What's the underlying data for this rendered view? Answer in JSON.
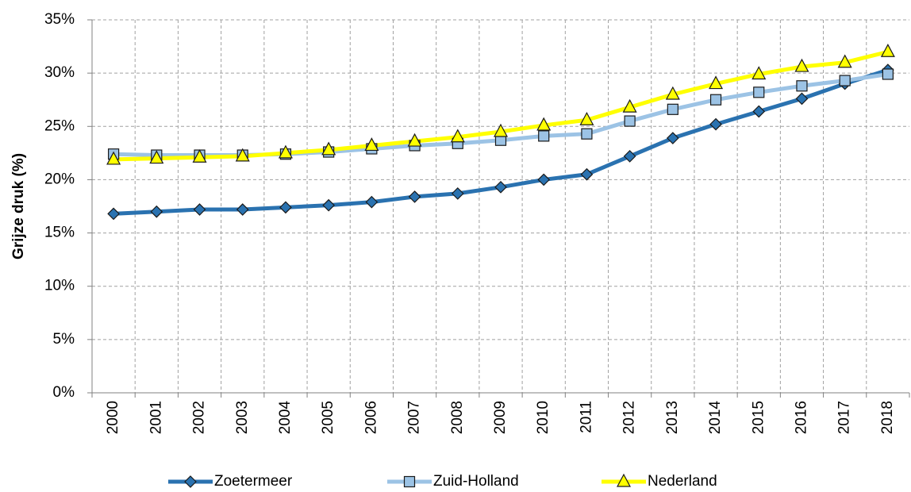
{
  "chart_data": {
    "type": "line",
    "ylabel": "Grijze druk (%)",
    "categories": [
      "2000",
      "2001",
      "2002",
      "2003",
      "2004",
      "2005",
      "2006",
      "2007",
      "2008",
      "2009",
      "2010",
      "2011",
      "2012",
      "2013",
      "2014",
      "2015",
      "2016",
      "2017",
      "2018"
    ],
    "series": [
      {
        "name": "Zoetermeer",
        "color": "#2a72b0",
        "marker": "diamond",
        "values": [
          16.8,
          17.0,
          17.2,
          17.2,
          17.4,
          17.6,
          17.9,
          18.4,
          18.7,
          19.3,
          20.0,
          20.5,
          22.2,
          23.9,
          25.2,
          26.4,
          27.6,
          29.0,
          30.3
        ]
      },
      {
        "name": "Zuid-Holland",
        "color": "#9cc3e5",
        "marker": "square",
        "values": [
          22.4,
          22.3,
          22.3,
          22.3,
          22.4,
          22.6,
          22.9,
          23.2,
          23.4,
          23.7,
          24.1,
          24.3,
          25.5,
          26.6,
          27.5,
          28.2,
          28.8,
          29.3,
          29.9
        ]
      },
      {
        "name": "Nederland",
        "color": "#ffff00",
        "marker": "triangle",
        "values": [
          21.9,
          22.0,
          22.1,
          22.2,
          22.5,
          22.8,
          23.2,
          23.6,
          24.0,
          24.5,
          25.1,
          25.6,
          26.8,
          28.0,
          29.0,
          29.9,
          30.6,
          31.0,
          32.0
        ]
      }
    ],
    "ylim": [
      0,
      35
    ],
    "yticks": [
      {
        "value": 0,
        "label": "0%"
      },
      {
        "value": 5,
        "label": "5%"
      },
      {
        "value": 10,
        "label": "10%"
      },
      {
        "value": 15,
        "label": "15%"
      },
      {
        "value": 20,
        "label": "20%"
      },
      {
        "value": 25,
        "label": "25%"
      },
      {
        "value": 30,
        "label": "30%"
      },
      {
        "value": 35,
        "label": "35%"
      }
    ],
    "grid": true,
    "legend": "bottom"
  }
}
